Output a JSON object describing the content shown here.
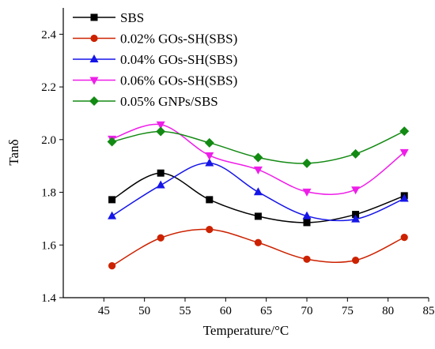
{
  "chart_data": {
    "type": "line",
    "xlabel": "Temperature/°C",
    "ylabel": "Tanδ",
    "xlim": [
      40,
      85
    ],
    "ylim": [
      1.4,
      2.5
    ],
    "xticks": [
      "45",
      "50",
      "55",
      "60",
      "65",
      "70",
      "75",
      "80",
      "85"
    ],
    "yticks": [
      "1.4",
      "1.6",
      "1.8",
      "2.0",
      "2.2",
      "2.4"
    ],
    "legend_position": "top-left",
    "grid": false,
    "x": [
      46,
      52,
      58,
      64,
      70,
      76,
      82
    ],
    "series": [
      {
        "name": "SBS",
        "color": "#000000",
        "marker": "square",
        "values": [
          1.772,
          1.873,
          1.772,
          1.709,
          1.685,
          1.716,
          1.787
        ]
      },
      {
        "name": "0.02% GOs-SH(SBS)",
        "color": "#cc2200",
        "marker": "circle",
        "values": [
          1.521,
          1.627,
          1.659,
          1.609,
          1.546,
          1.542,
          1.629
        ]
      },
      {
        "name": "0.04% GOs-SH(SBS)",
        "color": "#1515e8",
        "marker": "triangle-up",
        "values": [
          1.71,
          1.827,
          1.911,
          1.801,
          1.71,
          1.698,
          1.776
        ]
      },
      {
        "name": "0.06% GOs-SH(SBS)",
        "color": "#ee1ee8",
        "marker": "triangle-down",
        "values": [
          2.003,
          2.057,
          1.94,
          1.886,
          1.802,
          1.81,
          1.952
        ]
      },
      {
        "name": "0.05% GNPs/SBS",
        "color": "#138a13",
        "marker": "diamond",
        "values": [
          1.992,
          2.031,
          1.988,
          1.932,
          1.91,
          1.946,
          2.032
        ]
      }
    ]
  }
}
